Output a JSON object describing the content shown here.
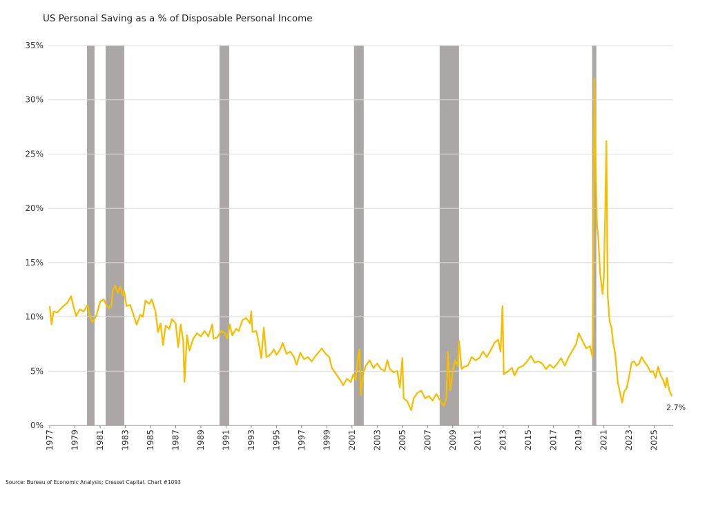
{
  "chart_data": {
    "type": "line",
    "title": "US Personal Saving as a % of Disposable Personal Income",
    "source": "Source: Bureau of Economic Analysis; Cresset Capital.  Chart #1093",
    "xlim": [
      1977,
      2026.5
    ],
    "xticks": [
      1977,
      1979,
      1981,
      1983,
      1985,
      1987,
      1989,
      1991,
      1993,
      1995,
      1997,
      1999,
      2001,
      2003,
      2005,
      2007,
      2009,
      2011,
      2013,
      2015,
      2017,
      2019,
      2021,
      2023,
      2025
    ],
    "ylim": [
      0,
      35
    ],
    "yticks": [
      {
        "value": 0,
        "label": "0%"
      },
      {
        "value": 5,
        "label": "5%"
      },
      {
        "value": 10,
        "label": "10%"
      },
      {
        "value": 15,
        "label": "15%"
      },
      {
        "value": 20,
        "label": "20%"
      },
      {
        "value": 25,
        "label": "25%"
      },
      {
        "value": 30,
        "label": "30%"
      },
      {
        "value": 35,
        "label": "35%"
      }
    ],
    "grid": true,
    "recession_color": "#aba7a6",
    "recessions": [
      [
        1979.96,
        1980.56
      ],
      [
        1981.44,
        1982.92
      ],
      [
        1990.48,
        1991.25
      ],
      [
        2001.16,
        2001.93
      ],
      [
        2007.96,
        2009.5
      ],
      [
        2020.07,
        2020.4
      ]
    ],
    "annotations": [
      {
        "x": 2026.4,
        "y": 2.7,
        "label": "2.7%"
      }
    ],
    "series": [
      {
        "color": "#f6be00",
        "x": [
          1977.0,
          1977.15,
          1977.3,
          1977.6,
          1978.0,
          1978.4,
          1978.7,
          1978.9,
          1979.1,
          1979.4,
          1979.7,
          1980.0,
          1980.2,
          1980.4,
          1980.7,
          1981.0,
          1981.3,
          1981.5,
          1981.7,
          1981.9,
          1982.0,
          1982.2,
          1982.4,
          1982.6,
          1982.8,
          1982.9,
          1983.1,
          1983.4,
          1983.7,
          1983.9,
          1984.2,
          1984.4,
          1984.6,
          1984.9,
          1985.1,
          1985.4,
          1985.6,
          1985.8,
          1986.0,
          1986.2,
          1986.5,
          1986.7,
          1987.0,
          1987.2,
          1987.4,
          1987.6,
          1987.7,
          1987.9,
          1988.1,
          1988.4,
          1988.7,
          1989.0,
          1989.3,
          1989.6,
          1989.9,
          1990.0,
          1990.3,
          1990.6,
          1990.9,
          1991.1,
          1991.3,
          1991.5,
          1991.8,
          1992.0,
          1992.3,
          1992.6,
          1992.9,
          1993.0,
          1993.1,
          1993.4,
          1993.6,
          1993.8,
          1994.0,
          1994.2,
          1994.5,
          1994.8,
          1995.0,
          1995.3,
          1995.5,
          1995.8,
          1996.1,
          1996.4,
          1996.6,
          1996.9,
          1997.2,
          1997.5,
          1997.8,
          1998.1,
          1998.4,
          1998.6,
          1998.9,
          1999.2,
          1999.4,
          1999.7,
          2000.0,
          2000.3,
          2000.6,
          2000.9,
          2001.1,
          2001.3,
          2001.5,
          2001.6,
          2001.7,
          2001.9,
          2002.1,
          2002.4,
          2002.7,
          2003.0,
          2003.3,
          2003.6,
          2003.8,
          2004.0,
          2004.3,
          2004.6,
          2004.8,
          2005.0,
          2005.1,
          2005.4,
          2005.7,
          2005.9,
          2006.2,
          2006.5,
          2006.8,
          2007.1,
          2007.4,
          2007.7,
          2007.9,
          2008.1,
          2008.3,
          2008.5,
          2008.6,
          2008.8,
          2009.0,
          2009.2,
          2009.4,
          2009.5,
          2009.7,
          2009.9,
          2010.2,
          2010.5,
          2010.8,
          2011.1,
          2011.4,
          2011.7,
          2012.0,
          2012.3,
          2012.6,
          2012.8,
          2012.95,
          2013.05,
          2013.4,
          2013.7,
          2013.9,
          2014.2,
          2014.6,
          2014.9,
          2015.2,
          2015.5,
          2015.8,
          2016.1,
          2016.4,
          2016.7,
          2017.0,
          2017.3,
          2017.6,
          2017.9,
          2018.2,
          2018.5,
          2018.8,
          2019.0,
          2019.3,
          2019.6,
          2019.9,
          2020.1,
          2020.25,
          2020.35,
          2020.45,
          2020.55,
          2020.7,
          2020.9,
          2021.0,
          2021.1,
          2021.2,
          2021.3,
          2021.45,
          2021.6,
          2021.75,
          2021.9,
          2022.1,
          2022.3,
          2022.45,
          2022.6,
          2022.8,
          2023.0,
          2023.2,
          2023.4,
          2023.6,
          2023.8,
          2024.0,
          2024.2,
          2024.5,
          2024.7,
          2024.9,
          2025.1,
          2025.3,
          2025.5,
          2025.7,
          2025.9,
          2026.0,
          2026.2,
          2026.4
        ],
        "values": [
          11.0,
          9.3,
          10.5,
          10.4,
          10.9,
          11.3,
          11.9,
          10.9,
          10.1,
          10.7,
          10.5,
          11.1,
          10.0,
          9.5,
          10.1,
          11.4,
          11.6,
          11.1,
          10.8,
          11.0,
          12.4,
          12.9,
          12.2,
          12.8,
          12.0,
          12.4,
          11.0,
          11.1,
          10.0,
          9.3,
          10.2,
          10.0,
          11.5,
          11.2,
          11.6,
          10.5,
          8.6,
          9.4,
          7.4,
          9.2,
          8.9,
          9.8,
          9.4,
          7.2,
          9.3,
          7.8,
          4.0,
          8.3,
          6.9,
          8.0,
          8.5,
          8.2,
          8.7,
          8.2,
          9.3,
          8.0,
          8.1,
          8.7,
          8.5,
          8.0,
          9.3,
          8.3,
          8.9,
          8.7,
          9.7,
          9.9,
          9.4,
          10.5,
          8.6,
          8.7,
          7.6,
          6.2,
          9.0,
          6.3,
          6.5,
          7.0,
          6.5,
          7.0,
          7.6,
          6.6,
          6.8,
          6.3,
          5.6,
          6.7,
          6.1,
          6.3,
          5.9,
          6.4,
          6.8,
          7.1,
          6.6,
          6.3,
          5.3,
          4.8,
          4.3,
          3.7,
          4.3,
          4.0,
          4.7,
          4.2,
          6.5,
          7.0,
          2.8,
          4.9,
          5.5,
          6.0,
          5.3,
          5.7,
          5.2,
          5.0,
          6.0,
          5.2,
          4.9,
          5.0,
          3.5,
          6.2,
          2.5,
          2.2,
          1.4,
          2.5,
          3.0,
          3.2,
          2.5,
          2.7,
          2.3,
          2.9,
          2.5,
          2.1,
          1.8,
          2.6,
          6.8,
          3.2,
          5.0,
          6.0,
          5.5,
          7.8,
          5.2,
          5.4,
          5.5,
          6.3,
          6.0,
          6.2,
          6.8,
          6.3,
          6.9,
          7.6,
          7.9,
          6.8,
          11.0,
          4.7,
          5.0,
          5.3,
          4.6,
          5.3,
          5.5,
          5.9,
          6.4,
          5.8,
          5.9,
          5.7,
          5.2,
          5.6,
          5.3,
          5.7,
          6.2,
          5.5,
          6.3,
          6.9,
          7.5,
          8.5,
          7.8,
          7.1,
          7.3,
          6.3,
          32.0,
          24.0,
          18.5,
          17.4,
          14.0,
          12.1,
          13.8,
          19.6,
          26.2,
          12.0,
          9.6,
          9.0,
          7.5,
          6.6,
          4.0,
          2.9,
          2.1,
          3.1,
          3.4,
          4.5,
          5.8,
          5.9,
          5.5,
          5.7,
          6.3,
          5.9,
          5.4,
          4.9,
          5.0,
          4.4,
          5.4,
          4.6,
          4.2,
          3.5,
          4.4,
          3.2,
          2.7
        ]
      }
    ]
  }
}
